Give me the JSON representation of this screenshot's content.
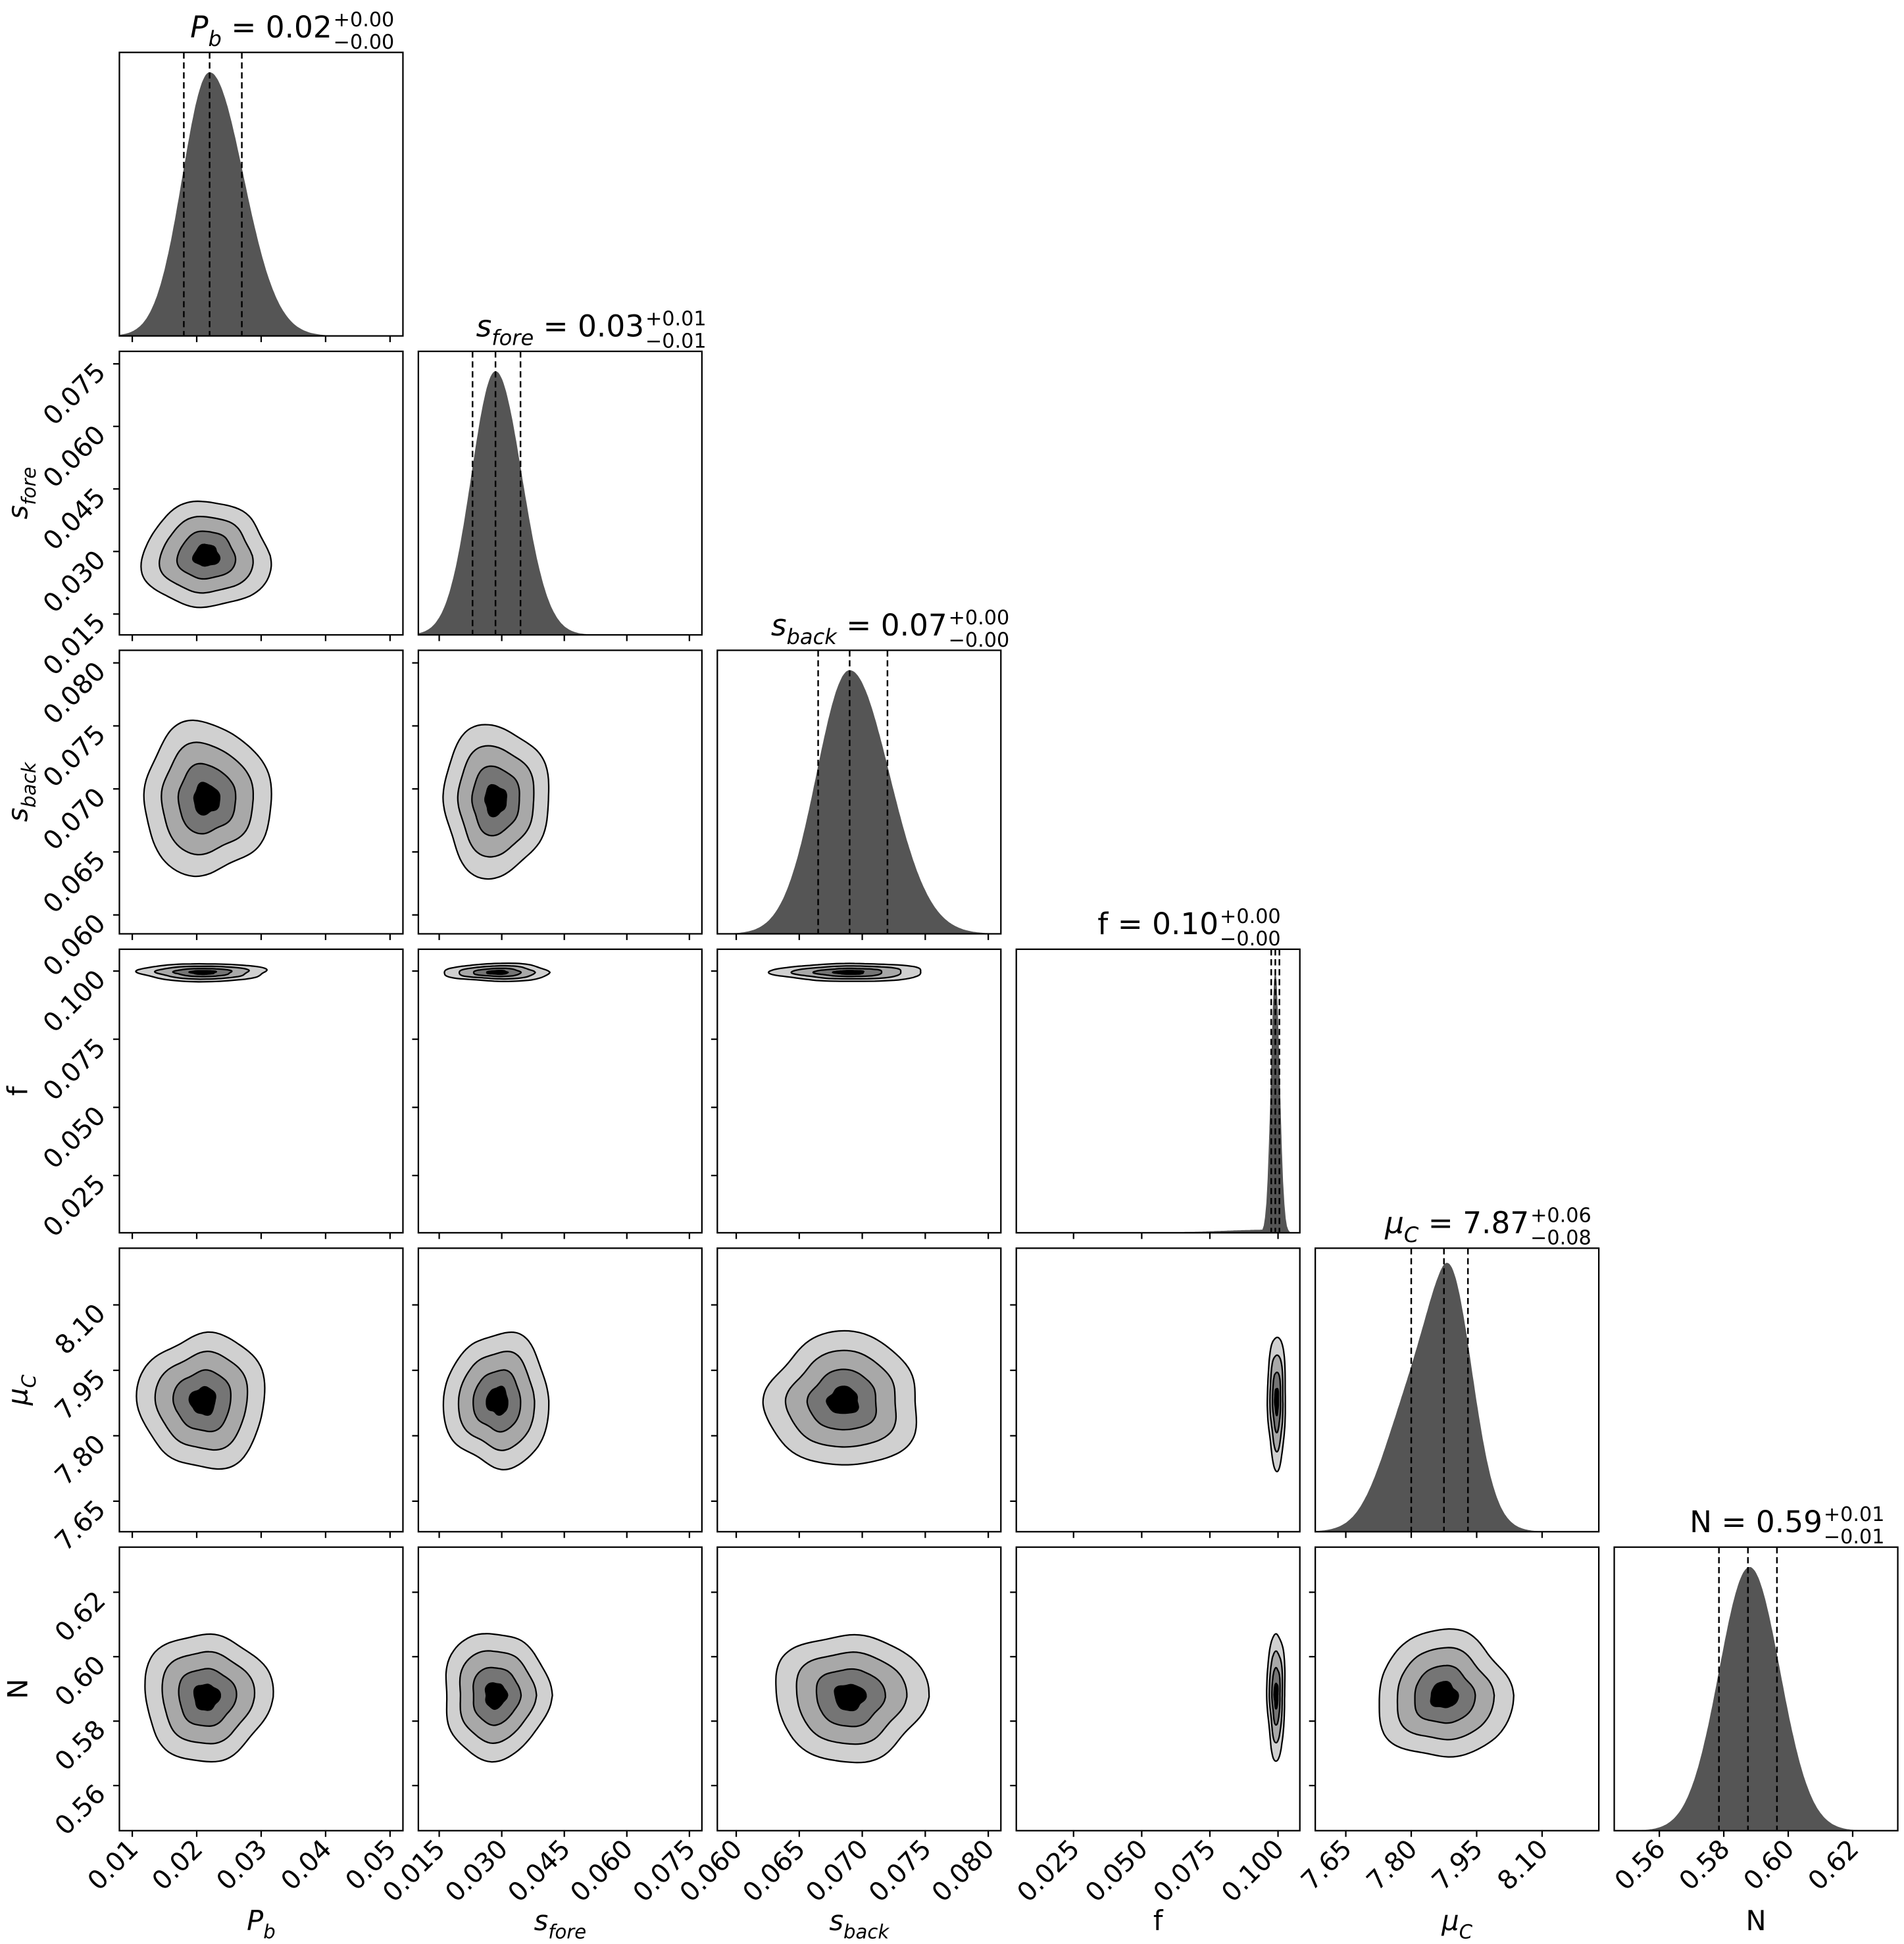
{
  "chart_data": {
    "type": "corner",
    "grid": false,
    "parameters": [
      {
        "key": "pb",
        "label": "P_b",
        "label_parts": {
          "base": "P",
          "sub": "b"
        },
        "range": [
          0.008,
          0.052
        ],
        "ticks": [
          0.01,
          0.02,
          0.03,
          0.04,
          0.05
        ],
        "tick_labels": [
          "0.01",
          "0.02",
          "0.03",
          "0.04",
          "0.05"
        ],
        "estimate": {
          "median": 0.022,
          "plus": 0.005,
          "minus": 0.004
        },
        "quantile_lines": [
          0.018,
          0.022,
          0.027
        ],
        "title": {
          "name": "P",
          "sub": "b",
          "value": "0.02",
          "plus": "+0.00",
          "minus": "−0.00"
        }
      },
      {
        "key": "sfore",
        "label": "s_fore",
        "label_parts": {
          "base": "s",
          "sub": "fore"
        },
        "range": [
          0.01,
          0.078
        ],
        "ticks": [
          0.015,
          0.03,
          0.045,
          0.06,
          0.075
        ],
        "tick_labels": [
          "0.015",
          "0.030",
          "0.045",
          "0.060",
          "0.075"
        ],
        "estimate": {
          "median": 0.0285,
          "plus": 0.006,
          "minus": 0.0055
        },
        "quantile_lines": [
          0.023,
          0.0285,
          0.0345
        ],
        "title": {
          "name": "s",
          "sub": "fore",
          "value": "0.03",
          "plus": "+0.01",
          "minus": "−0.01"
        }
      },
      {
        "key": "sback",
        "label": "s_back",
        "label_parts": {
          "base": "s",
          "sub": "back"
        },
        "range": [
          0.0585,
          0.081
        ],
        "ticks": [
          0.06,
          0.065,
          0.07,
          0.075,
          0.08
        ],
        "tick_labels": [
          "0.060",
          "0.065",
          "0.070",
          "0.075",
          "0.080"
        ],
        "estimate": {
          "median": 0.069,
          "plus": 0.003,
          "minus": 0.0025
        },
        "quantile_lines": [
          0.0665,
          0.069,
          0.072
        ],
        "title": {
          "name": "s",
          "sub": "back",
          "value": "0.07",
          "plus": "+0.00",
          "minus": "−0.00"
        }
      },
      {
        "key": "f",
        "label": "f",
        "label_parts": {
          "base": "f",
          "sub": ""
        },
        "range": [
          0.004,
          0.108
        ],
        "ticks": [
          0.025,
          0.05,
          0.075,
          0.1
        ],
        "tick_labels": [
          "0.025",
          "0.050",
          "0.075",
          "0.100"
        ],
        "estimate": {
          "median": 0.099,
          "plus": 0.0015,
          "minus": 0.0015
        },
        "quantile_lines": [
          0.0975,
          0.099,
          0.1005
        ],
        "title": {
          "name": "f",
          "sub": "",
          "value": "0.10",
          "plus": "+0.00",
          "minus": "−0.00"
        }
      },
      {
        "key": "muc",
        "label": "μ_C",
        "label_parts": {
          "base": "μ",
          "sub": "C"
        },
        "range": [
          7.58,
          8.23
        ],
        "ticks": [
          7.65,
          7.8,
          7.95,
          8.1
        ],
        "tick_labels": [
          "7.65",
          "7.80",
          "7.95",
          "8.10"
        ],
        "estimate": {
          "median": 7.87,
          "plus": 0.06,
          "minus": 0.08
        },
        "quantile_lines": [
          7.8,
          7.875,
          7.93
        ],
        "title": {
          "name": "μ",
          "sub": "C",
          "value": "7.87",
          "plus": "+0.06",
          "minus": "−0.08"
        }
      },
      {
        "key": "N",
        "label": "N",
        "label_parts": {
          "base": "N",
          "sub": ""
        },
        "range": [
          0.546,
          0.634
        ],
        "ticks": [
          0.56,
          0.58,
          0.6,
          0.62
        ],
        "tick_labels": [
          "0.56",
          "0.58",
          "0.60",
          "0.62"
        ],
        "estimate": {
          "median": 0.588,
          "plus": 0.009,
          "minus": 0.009
        },
        "quantile_lines": [
          0.5785,
          0.5875,
          0.5965
        ],
        "title": {
          "name": "N",
          "sub": "",
          "value": "0.59",
          "plus": "+0.01",
          "minus": "−0.01"
        }
      }
    ],
    "histogram_style": {
      "fill": "#555555",
      "quantile_line_style": "dashed"
    },
    "contour_levels": {
      "fills": [
        "#d0d0d0",
        "#a8a8a8",
        "#757575",
        "#000000"
      ],
      "scales": [
        1.0,
        0.72,
        0.45,
        0.2
      ]
    },
    "pairs": [
      {
        "x": "pb",
        "y": "sfore",
        "center": [
          0.0215,
          0.029
        ]
      },
      {
        "x": "pb",
        "y": "sback",
        "center": [
          0.0215,
          0.0692
        ]
      },
      {
        "x": "sfore",
        "y": "sback",
        "center": [
          0.0285,
          0.0691
        ]
      },
      {
        "x": "pb",
        "y": "f",
        "center": [
          0.021,
          0.0995
        ]
      },
      {
        "x": "sfore",
        "y": "f",
        "center": [
          0.029,
          0.0995
        ]
      },
      {
        "x": "sback",
        "y": "f",
        "center": [
          0.069,
          0.0995
        ]
      },
      {
        "x": "pb",
        "y": "muc",
        "center": [
          0.021,
          7.88
        ]
      },
      {
        "x": "sfore",
        "y": "muc",
        "center": [
          0.029,
          7.88
        ]
      },
      {
        "x": "sback",
        "y": "muc",
        "center": [
          0.0685,
          7.88
        ]
      },
      {
        "x": "f",
        "y": "muc",
        "center": [
          0.0995,
          7.88
        ]
      },
      {
        "x": "pb",
        "y": "N",
        "center": [
          0.0215,
          0.5875
        ]
      },
      {
        "x": "sfore",
        "y": "N",
        "center": [
          0.0285,
          0.588
        ]
      },
      {
        "x": "sback",
        "y": "N",
        "center": [
          0.069,
          0.5875
        ]
      },
      {
        "x": "f",
        "y": "N",
        "center": [
          0.0993,
          0.588
        ]
      },
      {
        "x": "muc",
        "y": "N",
        "center": [
          7.875,
          0.588
        ]
      }
    ]
  }
}
